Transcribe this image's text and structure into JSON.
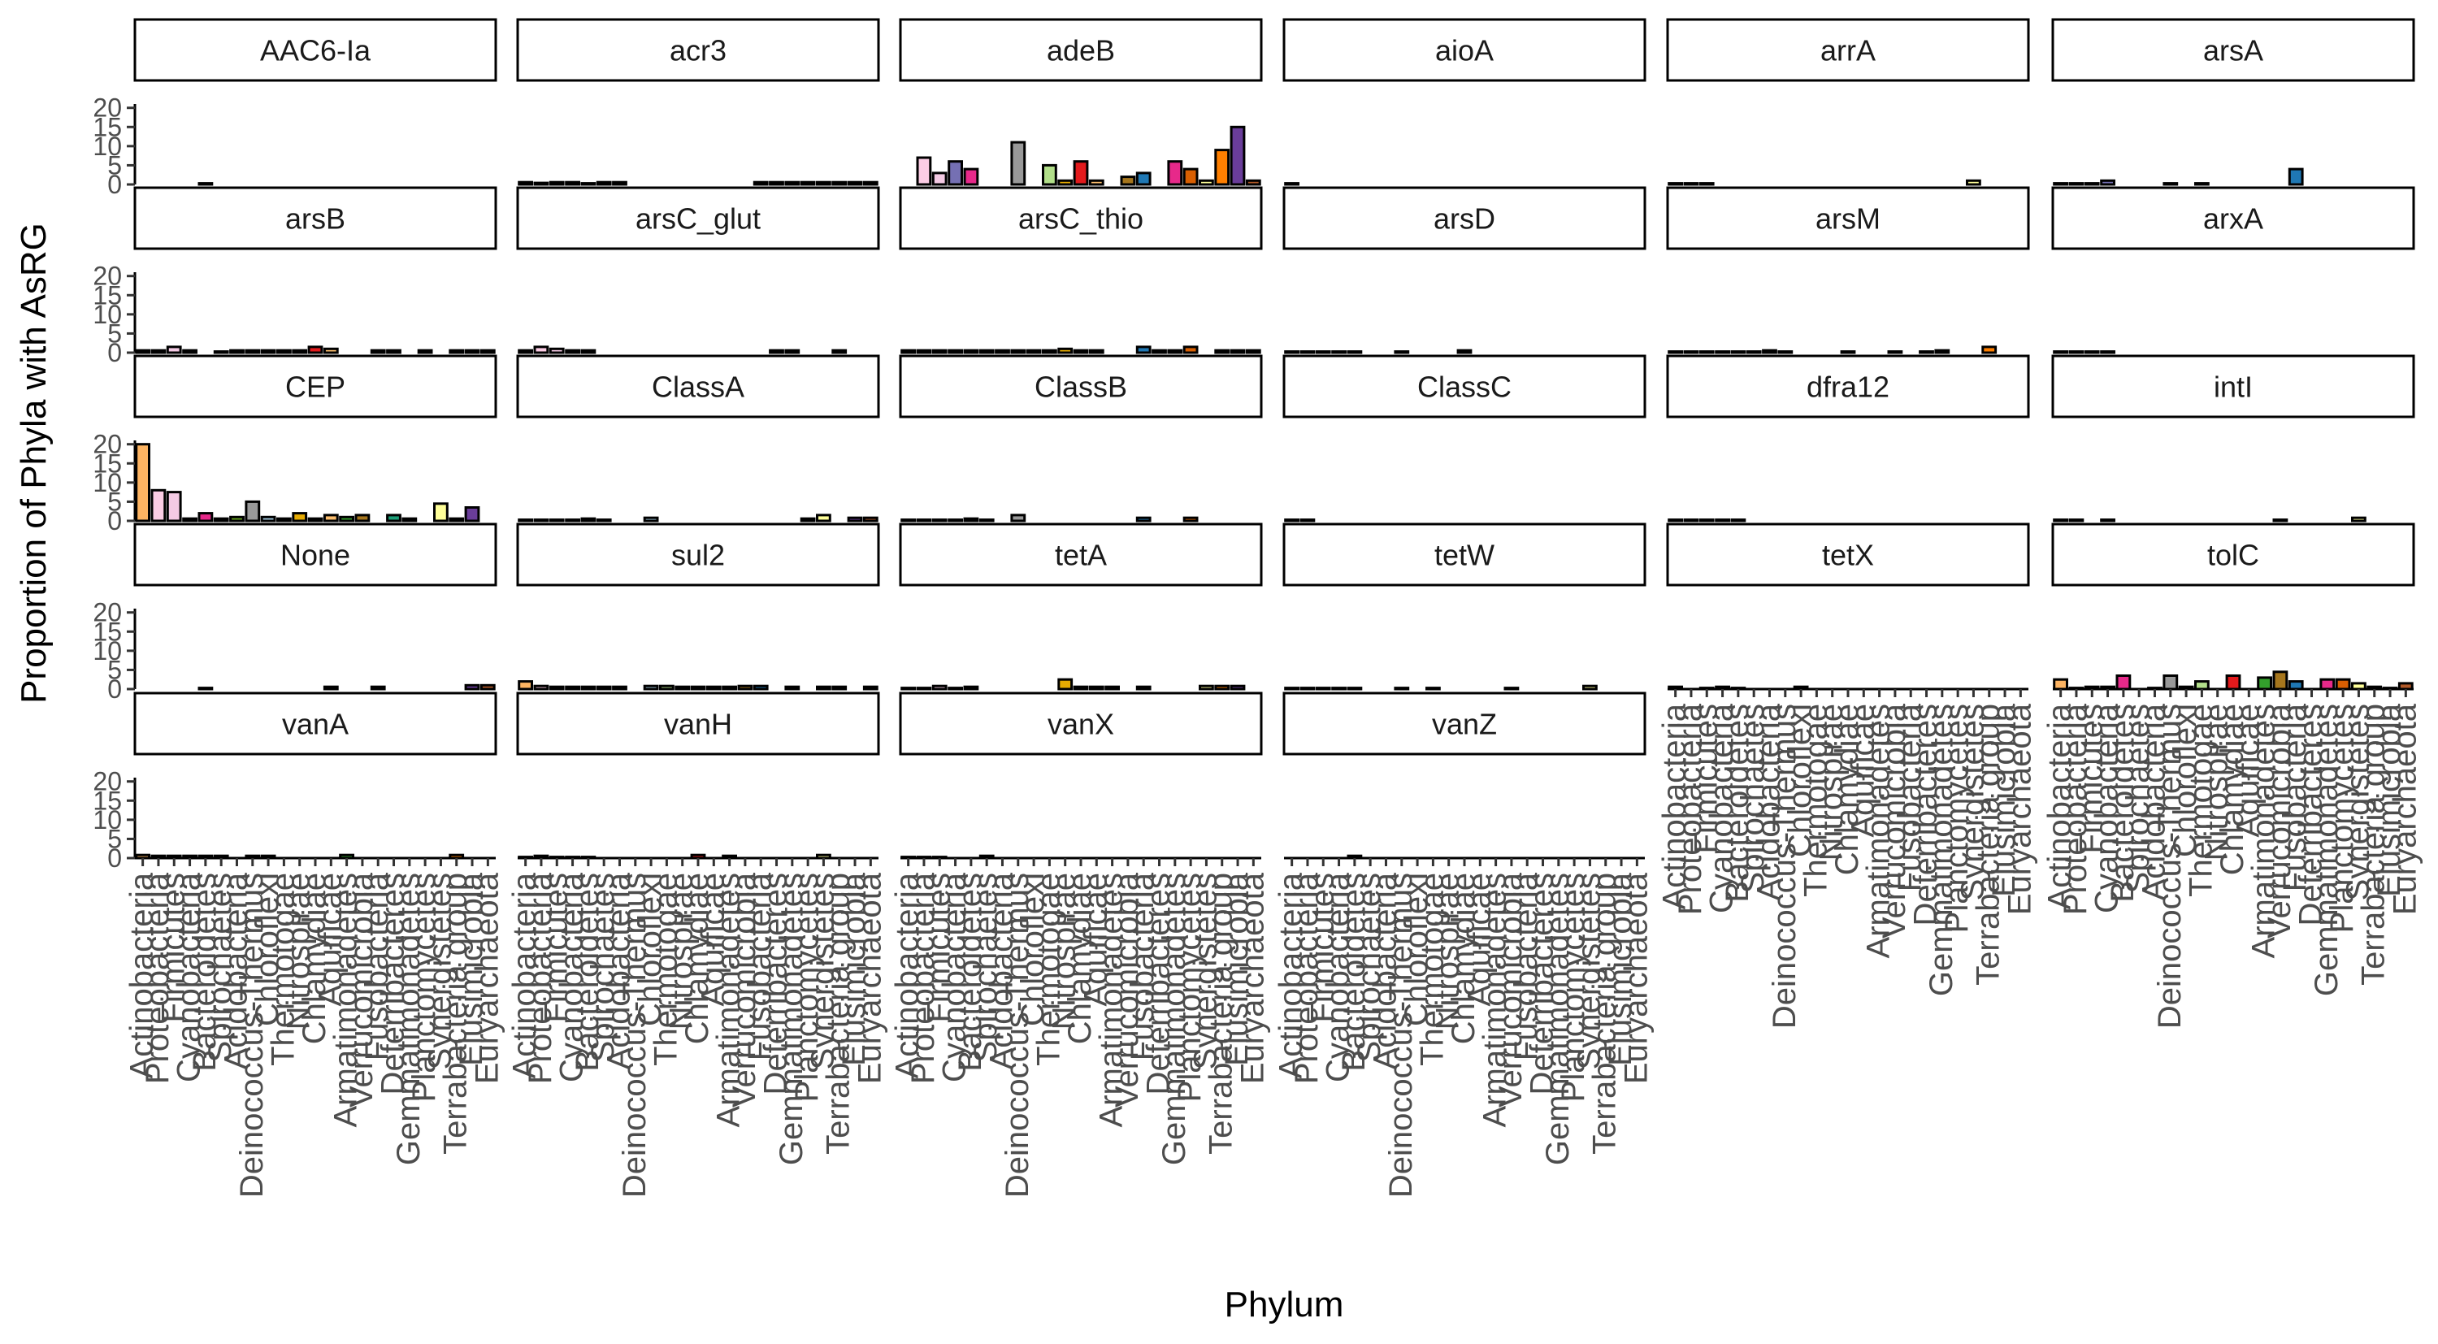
{
  "chart_data": {
    "type": "bar",
    "facet_layout": "wrap",
    "xlabel": "Phylum",
    "ylabel": "Proportion of Phyla with AsRG",
    "ylim": [
      0,
      21
    ],
    "yticks": [
      0,
      5,
      10,
      15,
      20
    ],
    "grid": false,
    "legend": "none",
    "categories": [
      "Actinobacteria",
      "Proteobacteria",
      "Firmicutes",
      "Cyanobacteria",
      "Bacteroidetes",
      "Spirochaetes",
      "Acidobacteria",
      "Deinococcus-Thermus",
      "Chloroflexi",
      "Thermotogae",
      "Nitrospirae",
      "Chlamydiae",
      "Aquificae",
      "Armatimonadetes",
      "Verrucomicrobia",
      "Fusobacteria",
      "Deferribacteres",
      "Gemmatimonadetes",
      "Planctomycetes",
      "Synergistetes",
      "Terrabacteria group",
      "Elusimicrobia",
      "Euryarchaeota"
    ],
    "colors": [
      "#FDB462",
      "#FCCDE5",
      "#F4CAE4",
      "#7570B3",
      "#E7298A",
      "#E7298A",
      "#66A61E",
      "#999999",
      "#A6CEE3",
      "#B2DF8A",
      "#E6AB02",
      "#E31A1C",
      "#FDBF6F",
      "#33A02C",
      "#A6761D",
      "#1F78B4",
      "#1B9E77",
      "#E7298A",
      "#D95F02",
      "#FFFF99",
      "#FF7F00",
      "#6A3D9A",
      "#B15928"
    ],
    "facets": [
      {
        "title": "AAC6-Ia",
        "values": [
          0,
          0,
          0,
          0,
          0.3,
          0,
          0,
          0,
          0,
          0,
          0,
          0,
          0,
          0,
          0,
          0,
          0,
          0,
          0,
          0,
          0,
          0,
          0
        ],
        "x_axis": false
      },
      {
        "title": "acr3",
        "values": [
          0.6,
          0.4,
          0.6,
          0.6,
          0.3,
          0.6,
          0.6,
          0,
          0,
          0,
          0,
          0,
          0,
          0,
          0,
          0.6,
          0.6,
          0.6,
          0.6,
          0.6,
          0.6,
          0.6,
          0.6
        ],
        "x_axis": false
      },
      {
        "title": "adeB",
        "values": [
          0,
          7,
          3,
          6,
          4,
          0,
          0,
          11,
          0,
          5,
          1,
          6,
          1,
          0,
          2,
          3,
          0,
          6,
          4,
          1,
          9,
          15,
          1
        ],
        "x_axis": false
      },
      {
        "title": "aioA",
        "values": [
          0.3,
          0,
          0,
          0,
          0,
          0,
          0,
          0,
          0,
          0,
          0,
          0,
          0,
          0,
          0,
          0,
          0,
          0,
          0,
          0,
          0,
          0,
          0
        ],
        "x_axis": false
      },
      {
        "title": "arrA",
        "values": [
          0.3,
          0.3,
          0.3,
          0,
          0,
          0,
          0,
          0,
          0,
          0,
          0,
          0,
          0,
          0,
          0,
          0,
          0,
          0,
          0,
          1,
          0,
          0,
          0
        ],
        "x_axis": false
      },
      {
        "title": "arsA",
        "values": [
          0.3,
          0.3,
          0.3,
          1,
          0,
          0,
          0,
          0.3,
          0,
          0.3,
          0,
          0,
          0,
          0,
          0,
          4,
          0,
          0,
          0,
          0,
          0,
          0,
          0
        ],
        "x_axis": false
      },
      {
        "title": "arsB",
        "values": [
          0.6,
          0.6,
          1.5,
          0.6,
          0,
          0.3,
          0.6,
          0.6,
          0.6,
          0.6,
          0.6,
          1.5,
          1,
          0,
          0,
          0.6,
          0.6,
          0,
          0.6,
          0,
          0.6,
          0.6,
          0.6
        ],
        "x_axis": false
      },
      {
        "title": "arsC_glut",
        "values": [
          0.6,
          1.5,
          1,
          0.6,
          0.6,
          0,
          0,
          0,
          0,
          0,
          0,
          0,
          0,
          0,
          0,
          0,
          0.6,
          0.6,
          0,
          0,
          0.6,
          0,
          0
        ],
        "x_axis": false
      },
      {
        "title": "arsC_thio",
        "values": [
          0.6,
          0.6,
          0.6,
          0.6,
          0.6,
          0.6,
          0.6,
          0.6,
          0.6,
          0.6,
          1,
          0.6,
          0.6,
          0,
          0,
          1.5,
          0.6,
          0.6,
          1.5,
          0,
          0.6,
          0.6,
          0.6
        ],
        "x_axis": false
      },
      {
        "title": "arsD",
        "values": [
          0.3,
          0.3,
          0.3,
          0.3,
          0.3,
          0,
          0,
          0.3,
          0,
          0,
          0,
          0.6,
          0,
          0,
          0,
          0,
          0,
          0,
          0,
          0,
          0,
          0,
          0
        ],
        "x_axis": false
      },
      {
        "title": "arsM",
        "values": [
          0.3,
          0.3,
          0.3,
          0.3,
          0.3,
          0.3,
          0.6,
          0.3,
          0,
          0,
          0,
          0.3,
          0,
          0,
          0.3,
          0,
          0.3,
          0.6,
          0,
          0,
          1.5,
          0,
          0
        ],
        "x_axis": false
      },
      {
        "title": "arxA",
        "values": [
          0.3,
          0.3,
          0.3,
          0.3,
          0,
          0,
          0,
          0,
          0,
          0,
          0,
          0,
          0,
          0,
          0,
          0,
          0,
          0,
          0,
          0,
          0,
          0,
          0
        ],
        "x_axis": false
      },
      {
        "title": "CEP",
        "values": [
          20,
          8,
          7.5,
          0.6,
          2,
          0.6,
          1,
          5,
          1,
          0.6,
          2,
          0.6,
          1.5,
          1,
          1.5,
          0,
          1.5,
          0.6,
          0,
          4.5,
          0.6,
          3.5,
          0
        ],
        "x_axis": false
      },
      {
        "title": "ClassA",
        "values": [
          0.3,
          0.3,
          0.3,
          0.3,
          0.6,
          0.3,
          0,
          0,
          0.8,
          0,
          0,
          0,
          0,
          0,
          0,
          0,
          0,
          0,
          0.6,
          1.5,
          0,
          0.8,
          0.8
        ],
        "x_axis": false
      },
      {
        "title": "ClassB",
        "values": [
          0.3,
          0.3,
          0.3,
          0.3,
          0.6,
          0.3,
          0,
          1.5,
          0,
          0,
          0,
          0,
          0,
          0,
          0,
          0.8,
          0,
          0,
          0.8,
          0,
          0,
          0,
          0
        ],
        "x_axis": false
      },
      {
        "title": "ClassC",
        "values": [
          0.3,
          0.3,
          0,
          0,
          0,
          0,
          0,
          0,
          0,
          0,
          0,
          0,
          0,
          0,
          0,
          0,
          0,
          0,
          0,
          0,
          0,
          0,
          0
        ],
        "x_axis": false
      },
      {
        "title": "dfra12",
        "values": [
          0.3,
          0.3,
          0.3,
          0.3,
          0.3,
          0,
          0,
          0,
          0,
          0,
          0,
          0,
          0,
          0,
          0,
          0,
          0,
          0,
          0,
          0,
          0,
          0,
          0
        ],
        "x_axis": false
      },
      {
        "title": "intI",
        "values": [
          0.3,
          0.3,
          0,
          0.3,
          0,
          0,
          0,
          0,
          0,
          0,
          0,
          0,
          0,
          0,
          0.3,
          0,
          0,
          0,
          0,
          0.8,
          0,
          0,
          0
        ],
        "x_axis": false
      },
      {
        "title": "None",
        "values": [
          0,
          0,
          0,
          0,
          0.3,
          0,
          0,
          0,
          0,
          0,
          0,
          0,
          0.6,
          0,
          0,
          0.6,
          0,
          0,
          0,
          0,
          0,
          1,
          1
        ],
        "x_axis": false
      },
      {
        "title": "sul2",
        "values": [
          2,
          0.8,
          0.6,
          0.6,
          0.6,
          0.6,
          0.6,
          0,
          0.8,
          0.8,
          0.6,
          0.6,
          0.6,
          0.6,
          0.8,
          0.8,
          0,
          0.6,
          0,
          0.6,
          0.6,
          0,
          0.6
        ],
        "x_axis": false
      },
      {
        "title": "tetA",
        "values": [
          0.3,
          0.3,
          0.8,
          0.3,
          0.6,
          0,
          0,
          0,
          0,
          0,
          2.5,
          0.6,
          0.6,
          0.6,
          0,
          0.6,
          0,
          0,
          0,
          0.8,
          0.8,
          0.8,
          0
        ],
        "x_axis": false
      },
      {
        "title": "tetW",
        "values": [
          0.3,
          0.3,
          0.3,
          0.3,
          0.3,
          0,
          0,
          0.3,
          0,
          0.3,
          0,
          0,
          0,
          0,
          0.3,
          0,
          0,
          0,
          0,
          0.8,
          0,
          0,
          0
        ],
        "x_axis": false
      },
      {
        "title": "tetX",
        "values": [
          0.6,
          0,
          0.3,
          0.6,
          0.3,
          0,
          0,
          0,
          0.6,
          0,
          0,
          0,
          0,
          0,
          0,
          0,
          0,
          0,
          0,
          0,
          0,
          0,
          0
        ],
        "x_axis": true
      },
      {
        "title": "tolC",
        "values": [
          2.5,
          0.3,
          0.6,
          0.6,
          3.5,
          0,
          0.3,
          3.5,
          0.6,
          2,
          0,
          3.5,
          0,
          3,
          4.5,
          2,
          0,
          2.5,
          2.5,
          1.5,
          0.6,
          0.3,
          1.5
        ],
        "x_axis": true
      },
      {
        "title": "vanA",
        "values": [
          0.8,
          0.6,
          0.6,
          0.6,
          0.6,
          0.6,
          0,
          0.6,
          0.6,
          0,
          0,
          0,
          0,
          0.8,
          0,
          0,
          0,
          0,
          0,
          0,
          0.8,
          0,
          0
        ],
        "x_axis": true
      },
      {
        "title": "vanH",
        "values": [
          0.3,
          0.6,
          0.3,
          0.3,
          0.3,
          0,
          0,
          0,
          0,
          0,
          0,
          0.8,
          0,
          0.6,
          0,
          0,
          0,
          0,
          0,
          0.8,
          0,
          0,
          0
        ],
        "x_axis": true
      },
      {
        "title": "vanX",
        "values": [
          0.3,
          0.3,
          0.3,
          0,
          0,
          0.6,
          0,
          0,
          0,
          0,
          0,
          0,
          0,
          0,
          0,
          0,
          0,
          0,
          0,
          0,
          0,
          0,
          0
        ],
        "x_axis": true
      },
      {
        "title": "vanZ",
        "values": [
          0,
          0,
          0,
          0,
          0.6,
          0,
          0,
          0,
          0,
          0,
          0,
          0,
          0,
          0,
          0,
          0,
          0,
          0,
          0,
          0,
          0,
          0,
          0
        ],
        "x_axis": true
      }
    ]
  }
}
